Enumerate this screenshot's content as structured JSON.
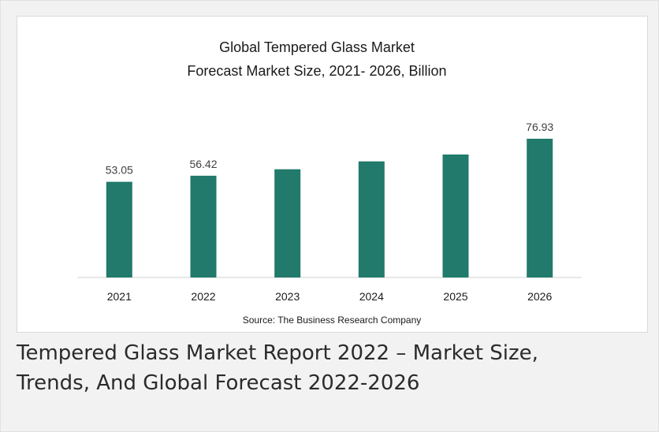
{
  "chart_data": {
    "type": "bar",
    "title_lines": [
      "Global Tempered Glass Market",
      "Forecast Market Size, 2021- 2026, Billion"
    ],
    "categories": [
      "2021",
      "2022",
      "2023",
      "2024",
      "2025",
      "2026"
    ],
    "values": [
      53.05,
      56.42,
      60.0,
      64.4,
      68.2,
      76.93
    ],
    "data_labels": [
      "53.05",
      "56.42",
      "",
      "",
      "",
      "76.93"
    ],
    "ylim": [
      0,
      80
    ],
    "bar_color": "#217a6b",
    "grid": false,
    "legend": "none",
    "source": "Source: The Business Research Company"
  },
  "caption": {
    "line1": "Tempered Glass Market Report 2022 – Market Size,",
    "line2": "Trends, And Global Forecast 2022-2026"
  }
}
